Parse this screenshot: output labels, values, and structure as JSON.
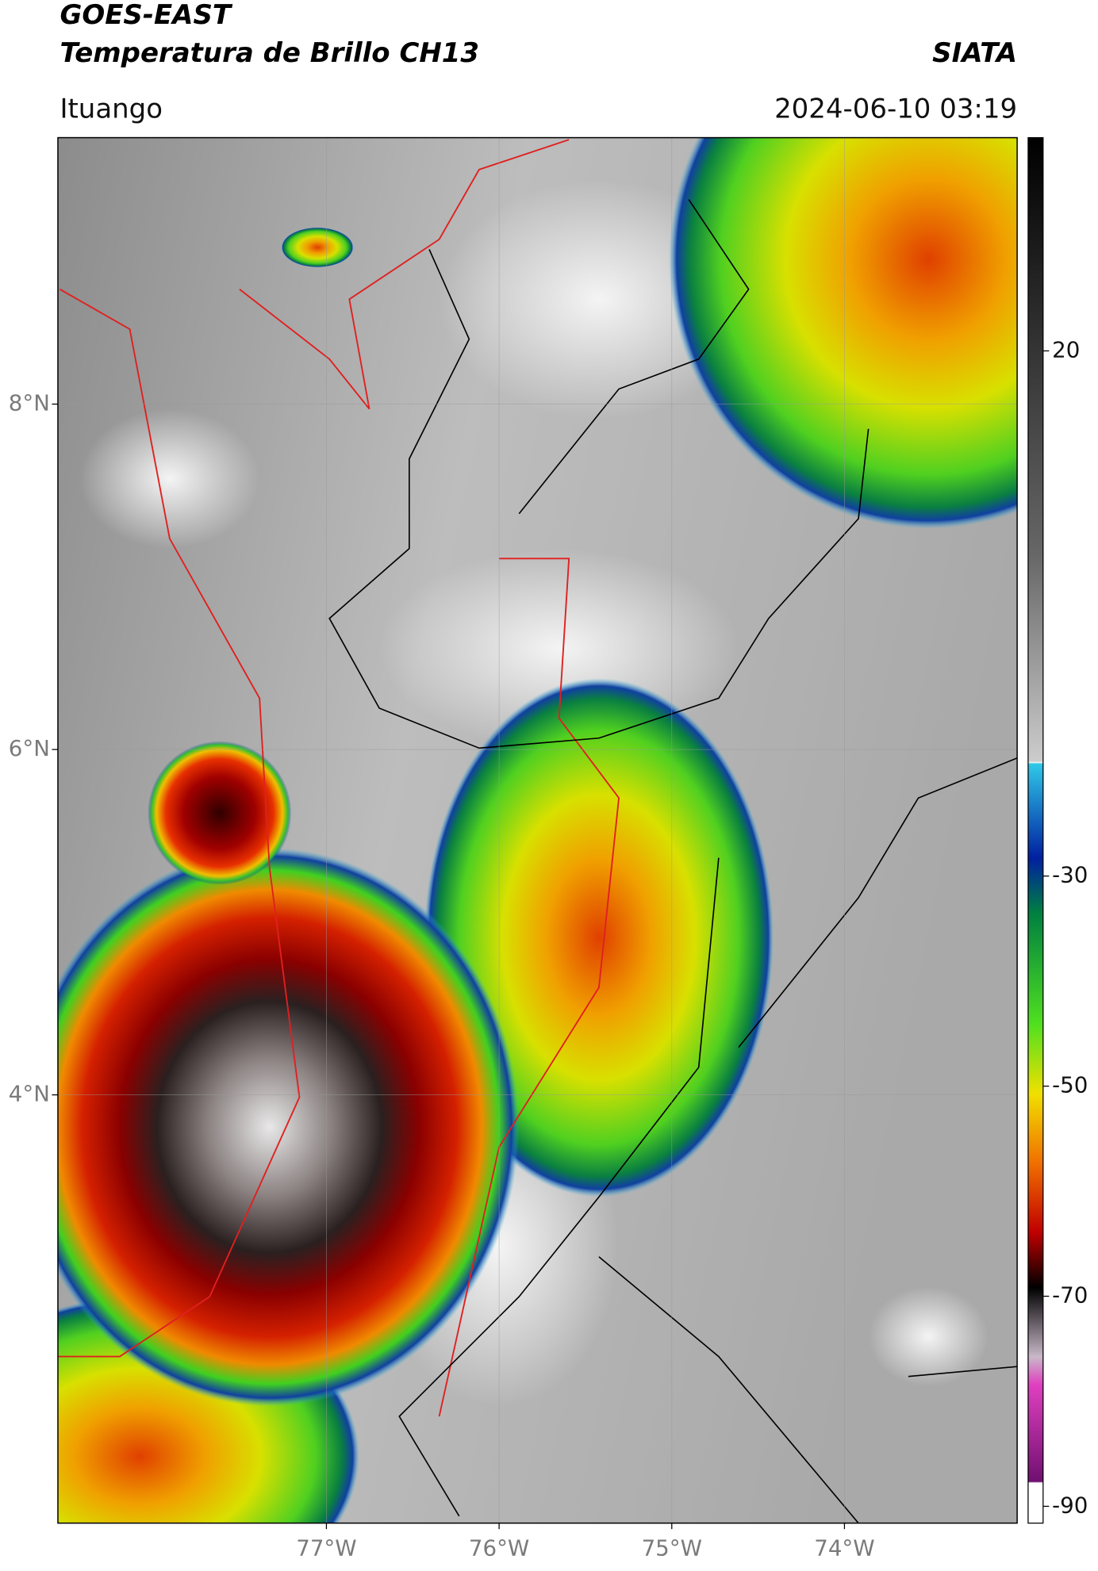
{
  "header": {
    "title_line1": "GOES-EAST",
    "title_line2": "Temperatura de Brillo CH13",
    "source": "SIATA",
    "location": "Ituango",
    "timestamp": "2024-06-10 03:19"
  },
  "map": {
    "xlim": [
      -78.555,
      -73.0
    ],
    "ylim": [
      1.52,
      9.543
    ],
    "xticks": [
      {
        "value": -77,
        "label": "77°W"
      },
      {
        "value": -76,
        "label": "76°W"
      },
      {
        "value": -75,
        "label": "75°W"
      },
      {
        "value": -74,
        "label": "74°W"
      }
    ],
    "yticks": [
      {
        "value": 8,
        "label": "8°N"
      },
      {
        "value": 6,
        "label": "6°N"
      },
      {
        "value": 4,
        "label": "4°N"
      }
    ],
    "grid": true
  },
  "colorbar": {
    "lim": [
      -91.6,
      40.3
    ],
    "ticks": [
      20,
      -30,
      -50,
      -70,
      -90
    ]
  }
}
